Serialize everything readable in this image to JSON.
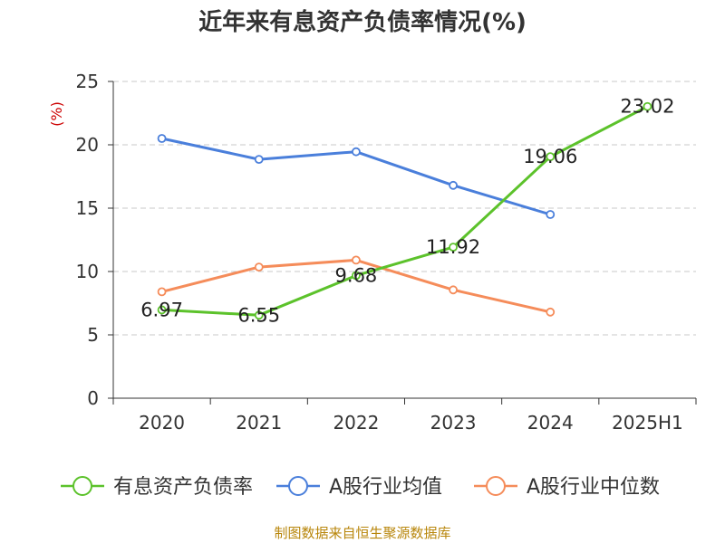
{
  "chart_data": {
    "type": "line",
    "title": "近年来有息资产负债率情况(%)",
    "ylabel": "(%)",
    "categories": [
      "2020",
      "2021",
      "2022",
      "2023",
      "2024",
      "2025H1"
    ],
    "ylim": [
      0,
      25
    ],
    "yticks": [
      0,
      5,
      10,
      15,
      20,
      25
    ],
    "grid": true,
    "legend_position": "bottom",
    "series": [
      {
        "name": "有息资产负债率",
        "color": "#5cc22b",
        "values": [
          6.97,
          6.55,
          9.68,
          11.92,
          19.06,
          23.02
        ],
        "show_labels": true
      },
      {
        "name": "A股行业均值",
        "color": "#4a7fdb",
        "values": [
          20.5,
          18.85,
          19.45,
          16.8,
          14.5,
          null
        ],
        "show_labels": false
      },
      {
        "name": "A股行业中位数",
        "color": "#f58c5a",
        "values": [
          8.4,
          10.35,
          10.9,
          8.55,
          6.8,
          null
        ],
        "show_labels": false
      }
    ]
  },
  "footer": "制图数据来自恒生聚源数据库"
}
